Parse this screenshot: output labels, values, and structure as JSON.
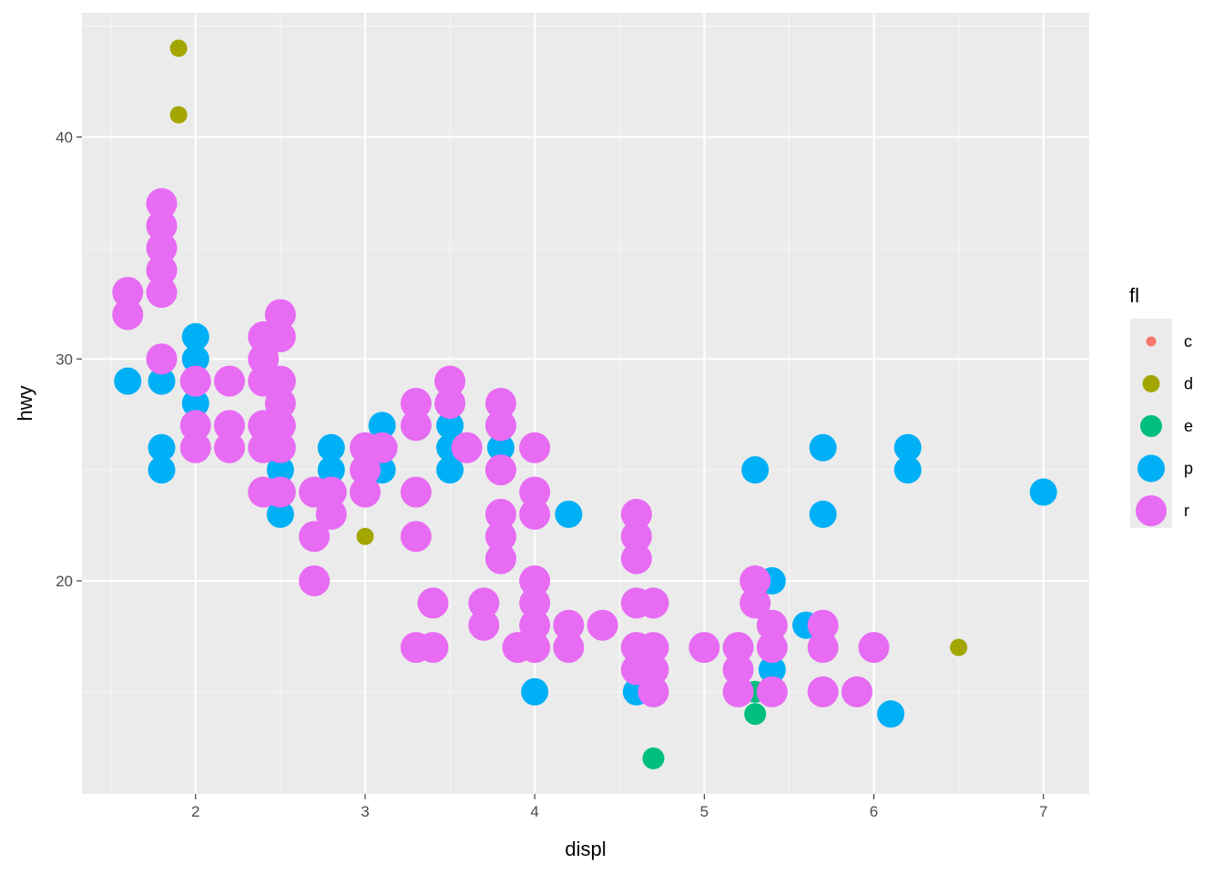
{
  "chart_data": {
    "type": "scatter",
    "xlabel": "displ",
    "ylabel": "hwy",
    "xlim": [
      1.33,
      7.27
    ],
    "ylim": [
      10.4,
      45.6
    ],
    "x_ticks": [
      2,
      3,
      4,
      5,
      6,
      7
    ],
    "y_ticks": [
      20,
      30,
      40
    ],
    "grid": true,
    "legend": {
      "title": "fl",
      "position": "right",
      "entries": [
        "c",
        "d",
        "e",
        "p",
        "r"
      ]
    },
    "colors": {
      "c": "#F8766D",
      "d": "#A3A500",
      "e": "#00BF7D",
      "p": "#00B0F6",
      "r": "#E76BF3"
    },
    "sizes": {
      "c": 1,
      "d": 2,
      "e": 3,
      "p": 4,
      "r": 5
    },
    "series": [
      {
        "name": "c",
        "points": [
          [
            1.8,
            36
          ]
        ]
      },
      {
        "name": "d",
        "points": [
          [
            1.9,
            44
          ],
          [
            1.9,
            41
          ],
          [
            3.0,
            22
          ],
          [
            6.5,
            17
          ]
        ]
      },
      {
        "name": "e",
        "points": [
          [
            4.7,
            12
          ],
          [
            5.3,
            14
          ],
          [
            5.3,
            15
          ]
        ]
      },
      {
        "name": "p",
        "points": [
          [
            1.6,
            29
          ],
          [
            1.8,
            29
          ],
          [
            1.8,
            26
          ],
          [
            1.8,
            25
          ],
          [
            2.0,
            31
          ],
          [
            2.0,
            30
          ],
          [
            2.0,
            29
          ],
          [
            2.0,
            28
          ],
          [
            2.5,
            25
          ],
          [
            2.5,
            23
          ],
          [
            2.8,
            26
          ],
          [
            2.8,
            25
          ],
          [
            3.1,
            27
          ],
          [
            3.1,
            25
          ],
          [
            3.5,
            27
          ],
          [
            3.5,
            26
          ],
          [
            3.5,
            25
          ],
          [
            3.6,
            26
          ],
          [
            3.8,
            26
          ],
          [
            4.0,
            15
          ],
          [
            4.2,
            23
          ],
          [
            4.6,
            15
          ],
          [
            5.3,
            25
          ],
          [
            5.4,
            20
          ],
          [
            5.4,
            16
          ],
          [
            5.6,
            18
          ],
          [
            5.7,
            26
          ],
          [
            5.7,
            23
          ],
          [
            6.1,
            14
          ],
          [
            6.2,
            26
          ],
          [
            6.2,
            25
          ],
          [
            7.0,
            24
          ]
        ]
      },
      {
        "name": "r",
        "points": [
          [
            1.6,
            33
          ],
          [
            1.6,
            32
          ],
          [
            1.8,
            37
          ],
          [
            1.8,
            36
          ],
          [
            1.8,
            35
          ],
          [
            1.8,
            34
          ],
          [
            1.8,
            33
          ],
          [
            1.8,
            30
          ],
          [
            2.0,
            29
          ],
          [
            2.0,
            27
          ],
          [
            2.0,
            26
          ],
          [
            2.2,
            29
          ],
          [
            2.2,
            27
          ],
          [
            2.2,
            26
          ],
          [
            2.4,
            31
          ],
          [
            2.4,
            30
          ],
          [
            2.4,
            29
          ],
          [
            2.4,
            27
          ],
          [
            2.4,
            26
          ],
          [
            2.4,
            24
          ],
          [
            2.5,
            32
          ],
          [
            2.5,
            31
          ],
          [
            2.5,
            29
          ],
          [
            2.5,
            28
          ],
          [
            2.5,
            27
          ],
          [
            2.5,
            26
          ],
          [
            2.5,
            24
          ],
          [
            2.7,
            24
          ],
          [
            2.7,
            22
          ],
          [
            2.7,
            20
          ],
          [
            2.8,
            24
          ],
          [
            2.8,
            23
          ],
          [
            3.0,
            26
          ],
          [
            3.0,
            25
          ],
          [
            3.0,
            24
          ],
          [
            3.1,
            26
          ],
          [
            3.3,
            28
          ],
          [
            3.3,
            27
          ],
          [
            3.3,
            24
          ],
          [
            3.3,
            22
          ],
          [
            3.3,
            17
          ],
          [
            3.4,
            19
          ],
          [
            3.4,
            17
          ],
          [
            3.5,
            29
          ],
          [
            3.5,
            28
          ],
          [
            3.6,
            26
          ],
          [
            3.7,
            19
          ],
          [
            3.7,
            18
          ],
          [
            3.8,
            28
          ],
          [
            3.8,
            27
          ],
          [
            3.8,
            25
          ],
          [
            3.8,
            23
          ],
          [
            3.8,
            22
          ],
          [
            3.8,
            21
          ],
          [
            3.9,
            17
          ],
          [
            4.0,
            26
          ],
          [
            4.0,
            24
          ],
          [
            4.0,
            23
          ],
          [
            4.0,
            20
          ],
          [
            4.0,
            19
          ],
          [
            4.0,
            18
          ],
          [
            4.0,
            17
          ],
          [
            4.2,
            18
          ],
          [
            4.2,
            17
          ],
          [
            4.4,
            18
          ],
          [
            4.6,
            23
          ],
          [
            4.6,
            22
          ],
          [
            4.6,
            21
          ],
          [
            4.6,
            19
          ],
          [
            4.6,
            17
          ],
          [
            4.6,
            16
          ],
          [
            4.7,
            19
          ],
          [
            4.7,
            17
          ],
          [
            4.7,
            16
          ],
          [
            4.7,
            15
          ],
          [
            5.0,
            17
          ],
          [
            5.2,
            17
          ],
          [
            5.2,
            16
          ],
          [
            5.2,
            15
          ],
          [
            5.3,
            20
          ],
          [
            5.3,
            19
          ],
          [
            5.4,
            18
          ],
          [
            5.4,
            17
          ],
          [
            5.4,
            15
          ],
          [
            5.7,
            18
          ],
          [
            5.7,
            17
          ],
          [
            5.7,
            15
          ],
          [
            5.9,
            15
          ],
          [
            6.0,
            17
          ]
        ]
      }
    ]
  }
}
